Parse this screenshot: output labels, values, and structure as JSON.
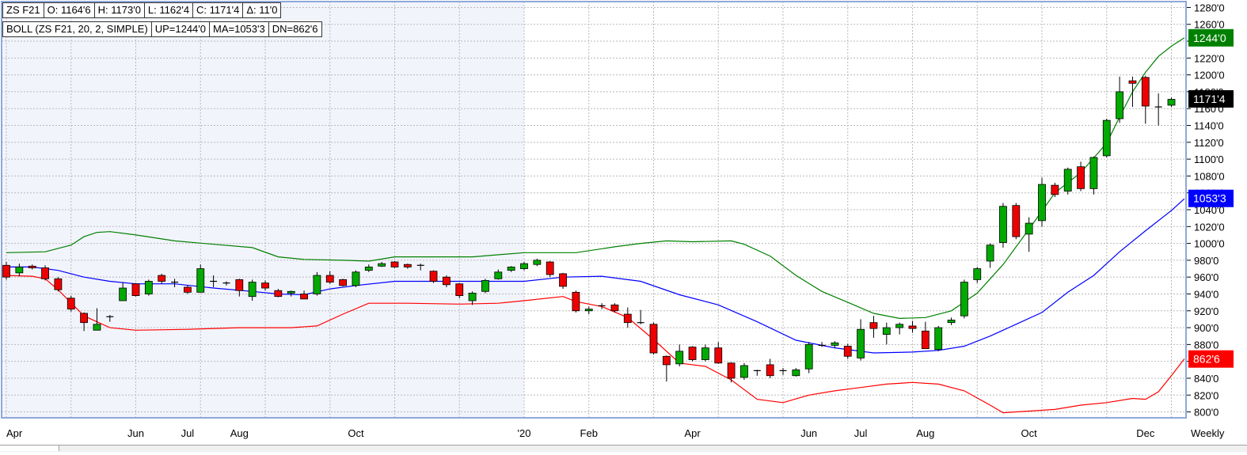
{
  "header": {
    "symbol": "ZS F21",
    "open": "O: 1164'6",
    "high": "H: 1173'0",
    "low": "L: 1162'4",
    "close": "C: 1171'4",
    "change": "Δ: 11'0",
    "indicator": "BOLL (ZS F21, 20, 2, SIMPLE)",
    "upper": "UP=1244'0",
    "middle": "MA=1053'3",
    "lower": "DN=862'6"
  },
  "colors": {
    "upper_band": "#008000",
    "middle_band": "#0000ff",
    "lower_band": "#ff0000",
    "up_candle": "#00aa00",
    "down_candle": "#ee0000",
    "price_tag": "#000000",
    "grid": "#b9b9b9",
    "frame": "#8ea8d8",
    "shade": "#f2f4fc"
  },
  "chart_data": {
    "type": "candlestick",
    "period_label": "Weekly",
    "y_ticks": [
      "1280'0",
      "1260'0",
      "1240'0",
      "1220'0",
      "1200'0",
      "1180'0",
      "1160'0",
      "1140'0",
      "1120'0",
      "1100'0",
      "1080'0",
      "1060'0",
      "1040'0",
      "1020'0",
      "1000'0",
      "980'0",
      "960'0",
      "940'0",
      "920'0",
      "900'0",
      "880'0",
      "860'0",
      "840'0",
      "820'0",
      "800'0"
    ],
    "y_tick_values": [
      1280,
      1260,
      1240,
      1220,
      1200,
      1180,
      1160,
      1140,
      1120,
      1100,
      1080,
      1060,
      1040,
      1020,
      1000,
      980,
      960,
      940,
      920,
      900,
      880,
      860,
      840,
      820,
      800
    ],
    "ylim": [
      793,
      1287
    ],
    "x_labels": [
      "Apr",
      "Jun",
      "Jul",
      "Aug",
      "Oct",
      "'20",
      "Feb",
      "Apr",
      "Jun",
      "Jul",
      "Aug",
      "Oct",
      "Dec"
    ],
    "x_label_weeks": [
      0,
      10,
      14,
      18,
      27,
      40,
      45,
      53,
      62,
      66,
      71,
      79,
      88
    ],
    "price_tags": [
      {
        "label": "1244'0",
        "value": 1244,
        "band": "upper"
      },
      {
        "label": "1171'4",
        "value": 1171.5,
        "band": "last"
      },
      {
        "label": "1053'3",
        "value": 1053.4,
        "band": "middle"
      },
      {
        "label": "862'6",
        "value": 862.8,
        "band": "lower"
      }
    ],
    "candles": [
      {
        "o": 974,
        "h": 978,
        "l": 957,
        "c": 960
      },
      {
        "o": 965,
        "h": 976,
        "l": 961,
        "c": 972
      },
      {
        "o": 973,
        "h": 975,
        "l": 969,
        "c": 971
      },
      {
        "o": 971,
        "h": 974,
        "l": 956,
        "c": 958
      },
      {
        "o": 958,
        "h": 960,
        "l": 943,
        "c": 945
      },
      {
        "o": 935,
        "h": 938,
        "l": 919,
        "c": 922
      },
      {
        "o": 917,
        "h": 918,
        "l": 896,
        "c": 906
      },
      {
        "o": 897,
        "h": 923,
        "l": 897,
        "c": 904
      },
      {
        "o": 912,
        "h": 915,
        "l": 907,
        "c": 913
      },
      {
        "o": 932,
        "h": 954,
        "l": 932,
        "c": 947
      },
      {
        "o": 952,
        "h": 953,
        "l": 937,
        "c": 938
      },
      {
        "o": 940,
        "h": 957,
        "l": 938,
        "c": 955
      },
      {
        "o": 962,
        "h": 964,
        "l": 952,
        "c": 955
      },
      {
        "o": 954,
        "h": 958,
        "l": 948,
        "c": 953
      },
      {
        "o": 948,
        "h": 950,
        "l": 940,
        "c": 942
      },
      {
        "o": 942,
        "h": 975,
        "l": 942,
        "c": 970
      },
      {
        "o": 954,
        "h": 962,
        "l": 948,
        "c": 955
      },
      {
        "o": 953,
        "h": 955,
        "l": 950,
        "c": 952
      },
      {
        "o": 957,
        "h": 958,
        "l": 937,
        "c": 944
      },
      {
        "o": 937,
        "h": 957,
        "l": 932,
        "c": 954
      },
      {
        "o": 953,
        "h": 956,
        "l": 944,
        "c": 947
      },
      {
        "o": 944,
        "h": 946,
        "l": 936,
        "c": 937
      },
      {
        "o": 941,
        "h": 944,
        "l": 937,
        "c": 943
      },
      {
        "o": 940,
        "h": 944,
        "l": 934,
        "c": 934
      },
      {
        "o": 940,
        "h": 966,
        "l": 938,
        "c": 962
      },
      {
        "o": 962,
        "h": 967,
        "l": 952,
        "c": 954
      },
      {
        "o": 957,
        "h": 958,
        "l": 949,
        "c": 950
      },
      {
        "o": 950,
        "h": 968,
        "l": 948,
        "c": 966
      },
      {
        "o": 968,
        "h": 975,
        "l": 966,
        "c": 972
      },
      {
        "o": 973,
        "h": 978,
        "l": 972,
        "c": 976
      },
      {
        "o": 978,
        "h": 979,
        "l": 971,
        "c": 972
      },
      {
        "o": 975,
        "h": 976,
        "l": 970,
        "c": 972
      },
      {
        "o": 974,
        "h": 976,
        "l": 968,
        "c": 973
      },
      {
        "o": 967,
        "h": 968,
        "l": 953,
        "c": 955
      },
      {
        "o": 960,
        "h": 962,
        "l": 948,
        "c": 951
      },
      {
        "o": 952,
        "h": 953,
        "l": 935,
        "c": 938
      },
      {
        "o": 932,
        "h": 943,
        "l": 927,
        "c": 941
      },
      {
        "o": 943,
        "h": 958,
        "l": 941,
        "c": 956
      },
      {
        "o": 958,
        "h": 969,
        "l": 957,
        "c": 966
      },
      {
        "o": 968,
        "h": 973,
        "l": 966,
        "c": 972
      },
      {
        "o": 970,
        "h": 978,
        "l": 968,
        "c": 976
      },
      {
        "o": 975,
        "h": 982,
        "l": 973,
        "c": 980
      },
      {
        "o": 978,
        "h": 979,
        "l": 960,
        "c": 963
      },
      {
        "o": 964,
        "h": 965,
        "l": 946,
        "c": 949
      },
      {
        "o": 942,
        "h": 944,
        "l": 918,
        "c": 920
      },
      {
        "o": 920,
        "h": 925,
        "l": 916,
        "c": 922
      },
      {
        "o": 926,
        "h": 929,
        "l": 922,
        "c": 925
      },
      {
        "o": 927,
        "h": 929,
        "l": 918,
        "c": 920
      },
      {
        "o": 916,
        "h": 924,
        "l": 900,
        "c": 906
      },
      {
        "o": 906,
        "h": 921,
        "l": 904,
        "c": 905
      },
      {
        "o": 904,
        "h": 906,
        "l": 868,
        "c": 870
      },
      {
        "o": 866,
        "h": 867,
        "l": 836,
        "c": 856
      },
      {
        "o": 857,
        "h": 880,
        "l": 854,
        "c": 872
      },
      {
        "o": 877,
        "h": 878,
        "l": 860,
        "c": 862
      },
      {
        "o": 862,
        "h": 880,
        "l": 860,
        "c": 876
      },
      {
        "o": 876,
        "h": 883,
        "l": 857,
        "c": 858
      },
      {
        "o": 858,
        "h": 859,
        "l": 835,
        "c": 840
      },
      {
        "o": 841,
        "h": 858,
        "l": 838,
        "c": 855
      },
      {
        "o": 849,
        "h": 850,
        "l": 843,
        "c": 849
      },
      {
        "o": 856,
        "h": 863,
        "l": 840,
        "c": 843
      },
      {
        "o": 849,
        "h": 852,
        "l": 844,
        "c": 849
      },
      {
        "o": 843,
        "h": 852,
        "l": 842,
        "c": 850
      },
      {
        "o": 851,
        "h": 883,
        "l": 846,
        "c": 880
      },
      {
        "o": 879,
        "h": 883,
        "l": 877,
        "c": 878
      },
      {
        "o": 879,
        "h": 884,
        "l": 876,
        "c": 882
      },
      {
        "o": 878,
        "h": 881,
        "l": 863,
        "c": 866
      },
      {
        "o": 864,
        "h": 910,
        "l": 861,
        "c": 898
      },
      {
        "o": 906,
        "h": 914,
        "l": 888,
        "c": 899
      },
      {
        "o": 892,
        "h": 906,
        "l": 880,
        "c": 900
      },
      {
        "o": 900,
        "h": 906,
        "l": 892,
        "c": 904
      },
      {
        "o": 902,
        "h": 908,
        "l": 894,
        "c": 899
      },
      {
        "o": 896,
        "h": 907,
        "l": 875,
        "c": 875
      },
      {
        "o": 874,
        "h": 902,
        "l": 872,
        "c": 900
      },
      {
        "o": 906,
        "h": 912,
        "l": 903,
        "c": 909
      },
      {
        "o": 914,
        "h": 957,
        "l": 911,
        "c": 954
      },
      {
        "o": 957,
        "h": 972,
        "l": 953,
        "c": 970
      },
      {
        "o": 979,
        "h": 1000,
        "l": 971,
        "c": 998
      },
      {
        "o": 1001,
        "h": 1048,
        "l": 995,
        "c": 1044
      },
      {
        "o": 1045,
        "h": 1048,
        "l": 1005,
        "c": 1008
      },
      {
        "o": 1011,
        "h": 1031,
        "l": 990,
        "c": 1024
      },
      {
        "o": 1027,
        "h": 1078,
        "l": 1020,
        "c": 1070
      },
      {
        "o": 1069,
        "h": 1072,
        "l": 1055,
        "c": 1058
      },
      {
        "o": 1062,
        "h": 1090,
        "l": 1058,
        "c": 1088
      },
      {
        "o": 1091,
        "h": 1097,
        "l": 1062,
        "c": 1065
      },
      {
        "o": 1065,
        "h": 1103,
        "l": 1058,
        "c": 1102
      },
      {
        "o": 1104,
        "h": 1148,
        "l": 1102,
        "c": 1146
      },
      {
        "o": 1148,
        "h": 1198,
        "l": 1143,
        "c": 1180
      },
      {
        "o": 1193,
        "h": 1198,
        "l": 1162,
        "c": 1190
      },
      {
        "o": 1197,
        "h": 1199,
        "l": 1142,
        "c": 1163
      },
      {
        "o": 1162,
        "h": 1178,
        "l": 1140,
        "c": 1162
      },
      {
        "o": 1164,
        "h": 1173,
        "l": 1162,
        "c": 1171
      }
    ],
    "upper_band": [
      {
        "w": 0,
        "v": 989
      },
      {
        "w": 3,
        "v": 990
      },
      {
        "w": 5,
        "v": 998
      },
      {
        "w": 6,
        "v": 1008
      },
      {
        "w": 7,
        "v": 1013
      },
      {
        "w": 8,
        "v": 1014
      },
      {
        "w": 10,
        "v": 1010
      },
      {
        "w": 13,
        "v": 1003
      },
      {
        "w": 16,
        "v": 999
      },
      {
        "w": 19,
        "v": 995
      },
      {
        "w": 21,
        "v": 984
      },
      {
        "w": 23,
        "v": 981
      },
      {
        "w": 26,
        "v": 980
      },
      {
        "w": 28,
        "v": 979
      },
      {
        "w": 30,
        "v": 984
      },
      {
        "w": 33,
        "v": 984
      },
      {
        "w": 36,
        "v": 984
      },
      {
        "w": 40,
        "v": 989
      },
      {
        "w": 44,
        "v": 989
      },
      {
        "w": 47,
        "v": 996
      },
      {
        "w": 49,
        "v": 1000
      },
      {
        "w": 51,
        "v": 1003
      },
      {
        "w": 53,
        "v": 1002
      },
      {
        "w": 56,
        "v": 1003
      },
      {
        "w": 57,
        "v": 999
      },
      {
        "w": 59,
        "v": 985
      },
      {
        "w": 61,
        "v": 962
      },
      {
        "w": 63,
        "v": 943
      },
      {
        "w": 65,
        "v": 930
      },
      {
        "w": 67,
        "v": 917
      },
      {
        "w": 69,
        "v": 911
      },
      {
        "w": 71,
        "v": 912
      },
      {
        "w": 73,
        "v": 920
      },
      {
        "w": 75,
        "v": 941
      },
      {
        "w": 77,
        "v": 975
      },
      {
        "w": 79,
        "v": 1017
      },
      {
        "w": 81,
        "v": 1060
      },
      {
        "w": 83,
        "v": 1084
      },
      {
        "w": 85,
        "v": 1119
      },
      {
        "w": 86,
        "v": 1150
      },
      {
        "w": 87,
        "v": 1180
      },
      {
        "w": 88,
        "v": 1203
      },
      {
        "w": 89,
        "v": 1222
      },
      {
        "w": 90,
        "v": 1234
      },
      {
        "w": 91,
        "v": 1244
      }
    ],
    "middle_band": [
      {
        "w": 0,
        "v": 972
      },
      {
        "w": 2,
        "v": 972
      },
      {
        "w": 4,
        "v": 968
      },
      {
        "w": 6,
        "v": 960
      },
      {
        "w": 8,
        "v": 955
      },
      {
        "w": 10,
        "v": 952
      },
      {
        "w": 13,
        "v": 952
      },
      {
        "w": 16,
        "v": 947
      },
      {
        "w": 19,
        "v": 943
      },
      {
        "w": 21,
        "v": 940
      },
      {
        "w": 23,
        "v": 939
      },
      {
        "w": 25,
        "v": 946
      },
      {
        "w": 27,
        "v": 950
      },
      {
        "w": 30,
        "v": 955
      },
      {
        "w": 33,
        "v": 955
      },
      {
        "w": 36,
        "v": 955
      },
      {
        "w": 40,
        "v": 955
      },
      {
        "w": 43,
        "v": 960
      },
      {
        "w": 46,
        "v": 961
      },
      {
        "w": 49,
        "v": 955
      },
      {
        "w": 52,
        "v": 939
      },
      {
        "w": 55,
        "v": 927
      },
      {
        "w": 58,
        "v": 907
      },
      {
        "w": 61,
        "v": 885
      },
      {
        "w": 64,
        "v": 876
      },
      {
        "w": 67,
        "v": 870
      },
      {
        "w": 70,
        "v": 871
      },
      {
        "w": 72,
        "v": 873
      },
      {
        "w": 74,
        "v": 878
      },
      {
        "w": 76,
        "v": 890
      },
      {
        "w": 78,
        "v": 904
      },
      {
        "w": 80,
        "v": 918
      },
      {
        "w": 82,
        "v": 942
      },
      {
        "w": 84,
        "v": 962
      },
      {
        "w": 86,
        "v": 990
      },
      {
        "w": 88,
        "v": 1015
      },
      {
        "w": 90,
        "v": 1039
      },
      {
        "w": 91,
        "v": 1053
      }
    ],
    "lower_band": [
      {
        "w": 0,
        "v": 962
      },
      {
        "w": 2,
        "v": 961
      },
      {
        "w": 3,
        "v": 958
      },
      {
        "w": 4,
        "v": 945
      },
      {
        "w": 6,
        "v": 914
      },
      {
        "w": 8,
        "v": 900
      },
      {
        "w": 10,
        "v": 897
      },
      {
        "w": 14,
        "v": 898
      },
      {
        "w": 18,
        "v": 900
      },
      {
        "w": 22,
        "v": 900
      },
      {
        "w": 24,
        "v": 902
      },
      {
        "w": 26,
        "v": 916
      },
      {
        "w": 28,
        "v": 929
      },
      {
        "w": 31,
        "v": 929
      },
      {
        "w": 35,
        "v": 928
      },
      {
        "w": 38,
        "v": 929
      },
      {
        "w": 40,
        "v": 932
      },
      {
        "w": 43,
        "v": 937
      },
      {
        "w": 44,
        "v": 931
      },
      {
        "w": 46,
        "v": 925
      },
      {
        "w": 48,
        "v": 912
      },
      {
        "w": 50,
        "v": 886
      },
      {
        "w": 52,
        "v": 858
      },
      {
        "w": 54,
        "v": 854
      },
      {
        "w": 56,
        "v": 838
      },
      {
        "w": 58,
        "v": 815
      },
      {
        "w": 60,
        "v": 811
      },
      {
        "w": 62,
        "v": 820
      },
      {
        "w": 64,
        "v": 825
      },
      {
        "w": 66,
        "v": 829
      },
      {
        "w": 68,
        "v": 833
      },
      {
        "w": 70,
        "v": 835
      },
      {
        "w": 72,
        "v": 833
      },
      {
        "w": 74,
        "v": 825
      },
      {
        "w": 76,
        "v": 808
      },
      {
        "w": 77,
        "v": 799
      },
      {
        "w": 79,
        "v": 801
      },
      {
        "w": 81,
        "v": 803
      },
      {
        "w": 83,
        "v": 808
      },
      {
        "w": 85,
        "v": 811
      },
      {
        "w": 87,
        "v": 816
      },
      {
        "w": 88,
        "v": 815
      },
      {
        "w": 89,
        "v": 824
      },
      {
        "w": 90,
        "v": 843
      },
      {
        "w": 91,
        "v": 863
      }
    ]
  }
}
